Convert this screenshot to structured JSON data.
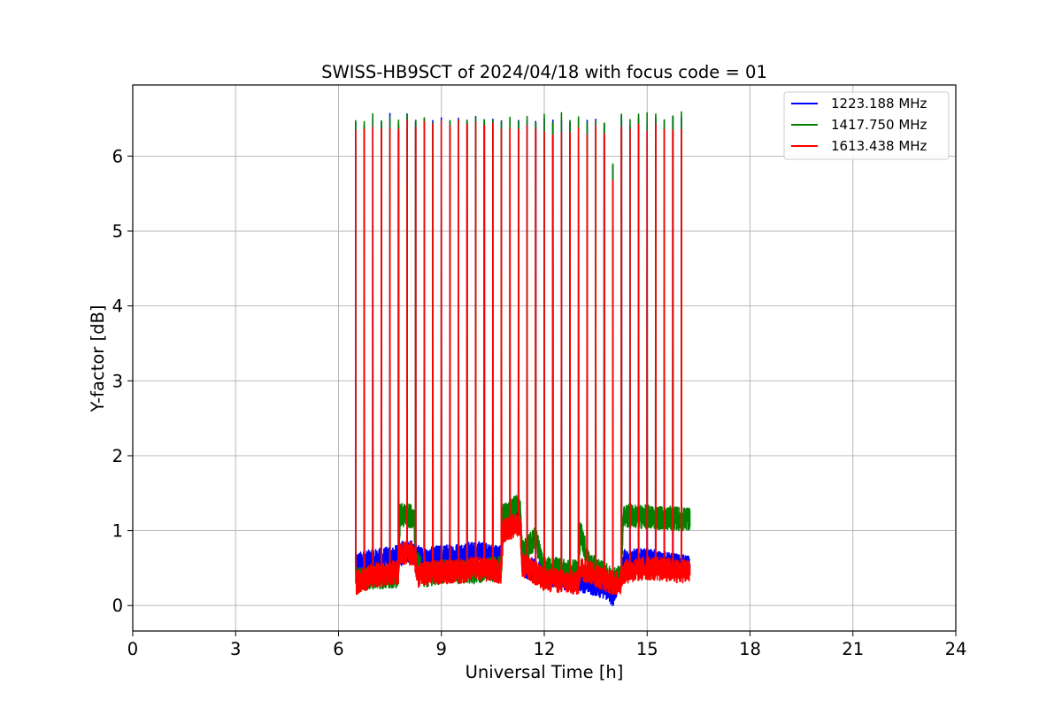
{
  "chart_data": {
    "type": "line",
    "title": "SWISS-HB9SCT of 2024/04/18 with focus code = 01",
    "xlabel": "Universal Time [h]",
    "ylabel": "Y-factor [dB]",
    "xlim": [
      0,
      24
    ],
    "ylim": [
      -0.34,
      6.95
    ],
    "xticks": [
      0,
      3,
      6,
      9,
      12,
      15,
      18,
      21,
      24
    ],
    "yticks": [
      0,
      1,
      2,
      3,
      4,
      5,
      6
    ],
    "grid": true,
    "legend_position": "top-right",
    "observation_window_h": [
      6.5,
      16.25
    ],
    "pulse_times_h": [
      6.5,
      6.75,
      7.0,
      7.25,
      7.5,
      7.75,
      8.0,
      8.25,
      8.5,
      8.75,
      9.0,
      9.25,
      9.5,
      9.75,
      10.0,
      10.25,
      10.5,
      10.75,
      11.0,
      11.25,
      11.5,
      11.75,
      12.0,
      12.25,
      12.5,
      12.75,
      13.0,
      13.25,
      13.5,
      13.75,
      14.0,
      14.25,
      14.5,
      14.75,
      15.0,
      15.25,
      15.5,
      15.75,
      16.0
    ],
    "series": [
      {
        "name": "1223.188 MHz",
        "color": "#0000ff",
        "pulse_peaks": [
          6.45,
          6.4,
          6.5,
          6.45,
          6.55,
          6.4,
          6.55,
          6.45,
          6.5,
          6.45,
          6.5,
          6.45,
          6.5,
          6.45,
          6.55,
          6.45,
          6.5,
          6.45,
          6.5,
          6.45,
          6.5,
          6.45,
          6.5,
          6.45,
          6.5,
          6.45,
          6.5,
          6.45,
          6.5,
          6.4,
          5.85,
          6.5,
          6.4,
          6.5,
          6.45,
          6.5,
          6.45,
          6.5,
          6.5
        ],
        "baseline": [
          [
            6.5,
            0.55
          ],
          [
            7.75,
            0.65
          ],
          [
            8.0,
            0.75
          ],
          [
            8.5,
            0.6
          ],
          [
            9.0,
            0.65
          ],
          [
            10.0,
            0.7
          ],
          [
            10.75,
            0.65
          ],
          [
            10.8,
            1.2
          ],
          [
            11.3,
            1.2
          ],
          [
            11.35,
            0.55
          ],
          [
            12.0,
            0.4
          ],
          [
            13.0,
            0.35
          ],
          [
            13.75,
            0.25
          ],
          [
            14.0,
            0.15
          ],
          [
            14.2,
            0.35
          ],
          [
            14.3,
            0.6
          ],
          [
            15.0,
            0.6
          ],
          [
            16.25,
            0.5
          ]
        ]
      },
      {
        "name": "1417.750 MHz",
        "color": "#008000",
        "pulse_peaks": [
          6.45,
          6.45,
          6.55,
          6.45,
          6.5,
          6.45,
          6.55,
          6.45,
          6.5,
          6.45,
          6.5,
          6.45,
          6.5,
          6.45,
          6.55,
          6.5,
          6.5,
          6.45,
          6.5,
          6.45,
          6.55,
          6.45,
          6.55,
          6.45,
          6.55,
          6.45,
          6.5,
          6.45,
          6.5,
          6.45,
          5.9,
          6.55,
          6.5,
          6.55,
          6.55,
          6.55,
          6.5,
          6.55,
          6.6
        ],
        "baseline": [
          [
            6.5,
            0.35
          ],
          [
            7.75,
            0.4
          ],
          [
            7.8,
            1.2
          ],
          [
            8.2,
            1.2
          ],
          [
            8.25,
            0.6
          ],
          [
            8.5,
            0.4
          ],
          [
            9.0,
            0.45
          ],
          [
            10.0,
            0.45
          ],
          [
            10.75,
            0.5
          ],
          [
            10.8,
            1.2
          ],
          [
            11.3,
            1.35
          ],
          [
            11.35,
            0.7
          ],
          [
            11.75,
            0.9
          ],
          [
            12.0,
            0.5
          ],
          [
            13.0,
            0.45
          ],
          [
            13.05,
            1.0
          ],
          [
            13.3,
            0.55
          ],
          [
            14.0,
            0.35
          ],
          [
            14.25,
            0.4
          ],
          [
            14.3,
            1.2
          ],
          [
            16.25,
            1.15
          ]
        ]
      },
      {
        "name": "1613.438 MHz",
        "color": "#ff0000",
        "pulse_peaks": [
          6.35,
          6.35,
          6.4,
          6.35,
          6.4,
          6.35,
          6.45,
          6.4,
          6.45,
          6.4,
          6.45,
          6.4,
          6.45,
          6.4,
          6.45,
          6.4,
          6.45,
          6.35,
          6.4,
          6.35,
          6.4,
          6.35,
          6.35,
          6.3,
          6.35,
          6.3,
          6.35,
          6.3,
          6.4,
          6.3,
          5.7,
          6.4,
          6.35,
          6.4,
          6.35,
          6.4,
          6.35,
          6.35,
          6.35
        ],
        "baseline": [
          [
            6.5,
            0.3
          ],
          [
            7.0,
            0.4
          ],
          [
            7.75,
            0.45
          ],
          [
            7.8,
            0.7
          ],
          [
            8.2,
            0.7
          ],
          [
            8.3,
            0.4
          ],
          [
            8.75,
            0.45
          ],
          [
            9.5,
            0.45
          ],
          [
            10.0,
            0.5
          ],
          [
            10.75,
            0.45
          ],
          [
            10.8,
            1.0
          ],
          [
            11.3,
            1.1
          ],
          [
            11.35,
            0.55
          ],
          [
            12.0,
            0.35
          ],
          [
            13.0,
            0.3
          ],
          [
            13.05,
            0.5
          ],
          [
            13.3,
            0.45
          ],
          [
            14.0,
            0.3
          ],
          [
            14.25,
            0.3
          ],
          [
            14.3,
            0.45
          ],
          [
            15.0,
            0.5
          ],
          [
            16.25,
            0.45
          ]
        ]
      }
    ]
  }
}
